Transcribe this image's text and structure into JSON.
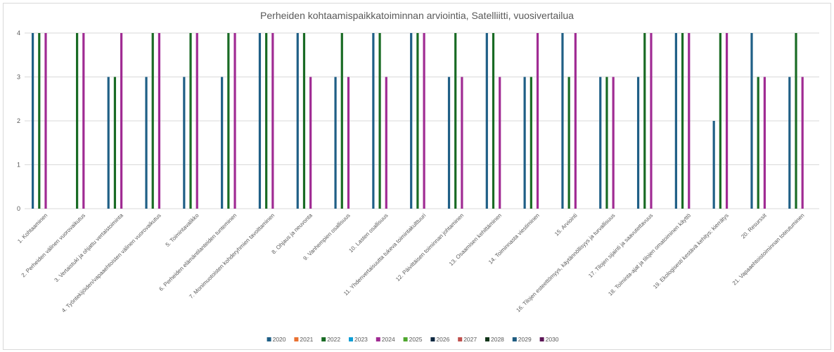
{
  "chart_data": {
    "type": "bar",
    "title": "Perheiden kohtaamispaikkatoiminnan arviointia, Satelliitti, vuosivertailua",
    "xlabel": "",
    "ylabel": "",
    "ylim": [
      0,
      4
    ],
    "yticks": [
      "0",
      "1",
      "2",
      "3",
      "4"
    ],
    "grid": true,
    "legend_position": "bottom",
    "categories": [
      "1. Kohtaaminen",
      "2. Perheiden välinen vuorovaikutus",
      "3. Vertaistuki ja ohjattu vertaistoiminta",
      "4. Työntekijöiden/vapaaehtoisten välinen vuorovaikutus",
      "5. Toimintavalikko",
      "6. Perheiden elämäntilanteiden tunteminen",
      "7. Monimuotoisten kohderyhmien tavoittaminen",
      "8. Ohjaus ja neuvonta",
      "9. Vanhempien osallisuus",
      "10. Lasten osallisuus",
      "11. Yhdenvertaisuutta tukeva toimintakulttuuri",
      "12. Päivittäisen toiminnan johtaminen",
      "13. Osaamisen kehittäminen",
      "14. Toiminnasta viestiminen",
      "15. Arviointi",
      "16. Tilojen esteettömyys, käytännöllisyys ja turvallisuus",
      "17. Tilojen sijainti ja saavutettavuus",
      "18. Toiminta-ajat ja tilojen omatoiminen käyttö",
      "19. Ekologisesti kestävä kehitys: kierrätys",
      "20. Resurssit",
      "21. Vapaaehtoistoiminnan toteutuminen"
    ],
    "series": [
      {
        "name": "2020",
        "color": "#1f5f86",
        "values": [
          4,
          null,
          3,
          3,
          3,
          3,
          4,
          4,
          3,
          4,
          4,
          3,
          4,
          3,
          4,
          3,
          3,
          4,
          2,
          4,
          3
        ]
      },
      {
        "name": "2021",
        "color": "#e97132",
        "values": [
          null,
          null,
          null,
          null,
          null,
          null,
          null,
          null,
          null,
          null,
          null,
          null,
          null,
          null,
          null,
          null,
          null,
          null,
          null,
          null,
          null
        ]
      },
      {
        "name": "2022",
        "color": "#196b24",
        "values": [
          4,
          4,
          3,
          4,
          4,
          4,
          4,
          4,
          4,
          4,
          4,
          4,
          4,
          3,
          3,
          3,
          4,
          4,
          4,
          3,
          4
        ]
      },
      {
        "name": "2023",
        "color": "#0f9ed5",
        "values": [
          null,
          null,
          null,
          null,
          null,
          null,
          null,
          null,
          null,
          null,
          null,
          null,
          null,
          null,
          null,
          null,
          null,
          null,
          null,
          null,
          null
        ]
      },
      {
        "name": "2024",
        "color": "#a02b93",
        "values": [
          4,
          4,
          4,
          4,
          4,
          4,
          4,
          3,
          3,
          3,
          4,
          3,
          3,
          4,
          4,
          3,
          4,
          4,
          4,
          3,
          3
        ]
      },
      {
        "name": "2025",
        "color": "#4ea72e",
        "values": [
          null,
          null,
          null,
          null,
          null,
          null,
          null,
          null,
          null,
          null,
          null,
          null,
          null,
          null,
          null,
          null,
          null,
          null,
          null,
          null,
          null
        ]
      },
      {
        "name": "2026",
        "color": "#0e2841",
        "values": [
          null,
          null,
          null,
          null,
          null,
          null,
          null,
          null,
          null,
          null,
          null,
          null,
          null,
          null,
          null,
          null,
          null,
          null,
          null,
          null,
          null
        ]
      },
      {
        "name": "2027",
        "color": "#c0504d",
        "values": [
          null,
          null,
          null,
          null,
          null,
          null,
          null,
          null,
          null,
          null,
          null,
          null,
          null,
          null,
          null,
          null,
          null,
          null,
          null,
          null,
          null
        ]
      },
      {
        "name": "2028",
        "color": "#12361a",
        "values": [
          null,
          null,
          null,
          null,
          null,
          null,
          null,
          null,
          null,
          null,
          null,
          null,
          null,
          null,
          null,
          null,
          null,
          null,
          null,
          null,
          null
        ]
      },
      {
        "name": "2029",
        "color": "#1e5b80",
        "values": [
          null,
          null,
          null,
          null,
          null,
          null,
          null,
          null,
          null,
          null,
          null,
          null,
          null,
          null,
          null,
          null,
          null,
          null,
          null,
          null,
          null
        ]
      },
      {
        "name": "2030",
        "color": "#5c1657",
        "values": [
          null,
          null,
          null,
          null,
          null,
          null,
          null,
          null,
          null,
          null,
          null,
          null,
          null,
          null,
          null,
          null,
          null,
          null,
          null,
          null,
          null
        ]
      }
    ]
  }
}
